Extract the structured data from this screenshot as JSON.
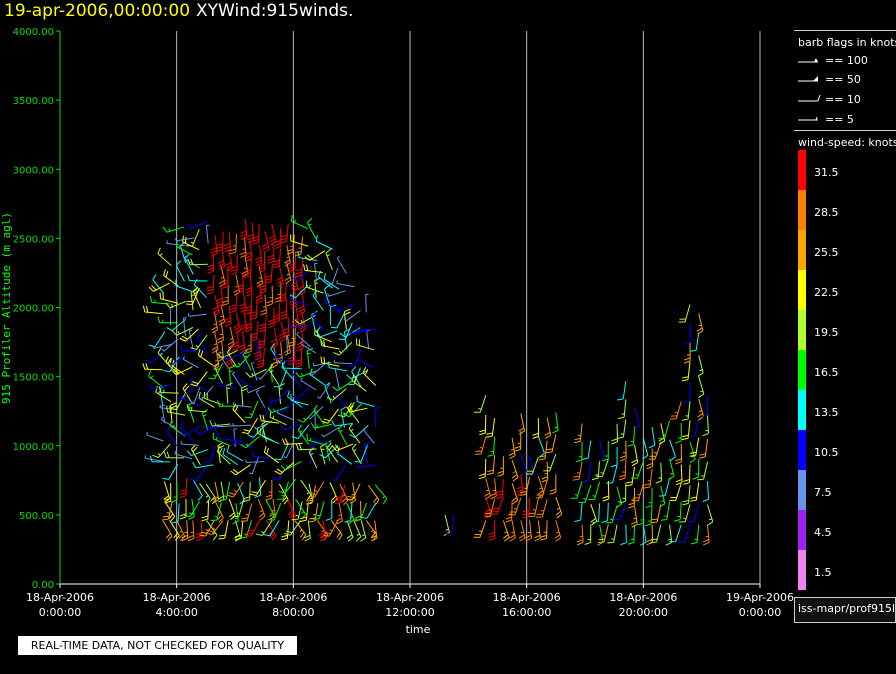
{
  "header": {
    "date_text": "19-apr-2006,00:00:00",
    "product_text": "XYWind:915winds."
  },
  "legend": {
    "barb_title": "barb flags in knots",
    "barbs": [
      {
        "label": "== 100",
        "value": 100
      },
      {
        "label": "== 50",
        "value": 50
      },
      {
        "label": "== 10",
        "value": 10
      },
      {
        "label": "== 5",
        "value": 5
      }
    ],
    "speed_title": "wind-speed: knots",
    "speed_bins": [
      {
        "label": "31.5",
        "color": "#ff0000"
      },
      {
        "label": "28.5",
        "color": "#ff7f00"
      },
      {
        "label": "25.5",
        "color": "#ffa500"
      },
      {
        "label": "22.5",
        "color": "#ffff00"
      },
      {
        "label": "19.5",
        "color": "#adff2f"
      },
      {
        "label": "16.5",
        "color": "#00ff00"
      },
      {
        "label": "13.5",
        "color": "#00ffff"
      },
      {
        "label": "10.5",
        "color": "#0000ff"
      },
      {
        "label": "7.5",
        "color": "#6495ed"
      },
      {
        "label": "4.5",
        "color": "#a020f0"
      },
      {
        "label": "1.5",
        "color": "#ee82ee"
      }
    ],
    "source_text": "iss-mapr/prof915l"
  },
  "notice_text": "REAL-TIME DATA, NOT CHECKED FOR QUALITY",
  "chart_data": {
    "type": "scatter",
    "title": "XYWind:915winds.",
    "xlabel": "time",
    "ylabel": "915 Profiler Altitude (m agl)",
    "ylim": [
      0,
      4000
    ],
    "yticks": [
      "0.00",
      "500.00",
      "1000.00",
      "1500.00",
      "2000.00",
      "2500.00",
      "3000.00",
      "3500.00",
      "4000.00"
    ],
    "xlim": [
      "18-Apr-2006 0:00:00",
      "19-Apr-2006 0:00:00"
    ],
    "xticks": [
      {
        "date": "18-Apr-2006",
        "time": "0:00:00"
      },
      {
        "date": "18-Apr-2006",
        "time": "4:00:00"
      },
      {
        "date": "18-Apr-2006",
        "time": "8:00:00"
      },
      {
        "date": "18-Apr-2006",
        "time": "12:00:00"
      },
      {
        "date": "18-Apr-2006",
        "time": "16:00:00"
      },
      {
        "date": "18-Apr-2006",
        "time": "20:00:00"
      },
      {
        "date": "19-Apr-2006",
        "time": "0:00:00"
      }
    ],
    "grid": true,
    "legend_position": "right",
    "y_unit": "m agl",
    "value_unit": "knots",
    "series": [
      {
        "altitudes": [
          450,
          550,
          700,
          850,
          1000,
          1150,
          1300,
          1450,
          1600,
          1750,
          1900,
          2050,
          2200,
          2350,
          2500,
          2650
        ],
        "note_hours": [
          3.5,
          3.75,
          4.0,
          4.25,
          4.5,
          4.75,
          5.0,
          5.25,
          5.5,
          5.75,
          6.0,
          6.25,
          6.5,
          6.75,
          7.0,
          7.25,
          7.5,
          7.75,
          8.0,
          8.25,
          8.5,
          8.75,
          9.0,
          9.25,
          9.5,
          9.75,
          10.0,
          10.5,
          11.0
        ]
      }
    ]
  }
}
